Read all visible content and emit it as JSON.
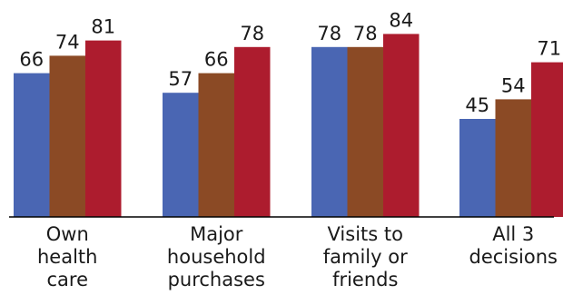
{
  "chart_data": {
    "type": "bar",
    "title": "",
    "xlabel": "",
    "ylabel": "",
    "ylim": [
      0,
      100
    ],
    "grid": false,
    "legend": "none",
    "categories": [
      [
        "Own",
        "health",
        "care"
      ],
      [
        "Major",
        "household",
        "purchases"
      ],
      [
        "Visits to",
        "family or",
        "friends"
      ],
      [
        "All 3",
        "decisions"
      ]
    ],
    "series": [
      {
        "values": [
          66,
          57,
          78,
          45
        ],
        "color": "#4a66b3"
      },
      {
        "values": [
          74,
          66,
          78,
          54
        ],
        "color": "#8b4a25"
      },
      {
        "values": [
          81,
          78,
          84,
          71
        ],
        "color": "#ad1c2e"
      }
    ]
  }
}
